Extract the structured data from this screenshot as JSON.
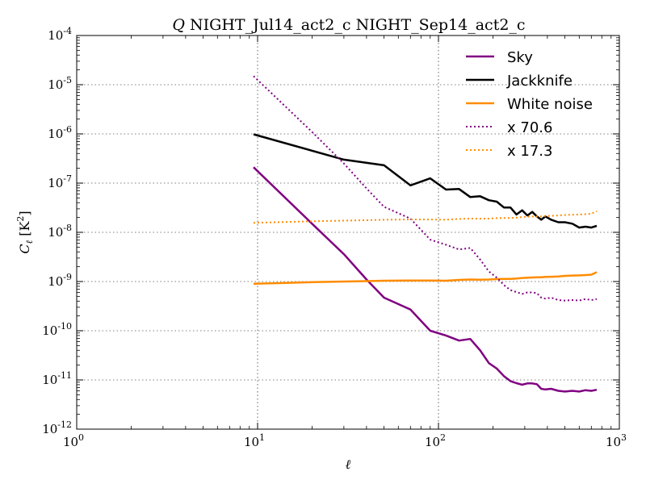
{
  "chart_data": {
    "type": "line",
    "title": {
      "var": "Q",
      "rest": " NIGHT_Jul14_act2_c NIGHT_Sep14_act2_c"
    },
    "xlabel": "ℓ",
    "ylabel": {
      "main": "C",
      "sub": "ℓ",
      "unit": "[K",
      "sup": "2",
      "close": "]"
    },
    "xscale": "log",
    "yscale": "log",
    "xlim": [
      1,
      1000
    ],
    "ylim": [
      1e-12,
      0.0001
    ],
    "grid": true,
    "legend_position": "top-right",
    "x_ticks": [
      {
        "value": 1,
        "base": "10",
        "exp": "0"
      },
      {
        "value": 10,
        "base": "10",
        "exp": "1"
      },
      {
        "value": 100,
        "base": "10",
        "exp": "2"
      },
      {
        "value": 1000,
        "base": "10",
        "exp": "3"
      }
    ],
    "y_ticks": [
      {
        "value": 1e-12,
        "base": "10",
        "exp": "-12"
      },
      {
        "value": 1e-11,
        "base": "10",
        "exp": "-11"
      },
      {
        "value": 1e-10,
        "base": "10",
        "exp": "-10"
      },
      {
        "value": 1e-09,
        "base": "10",
        "exp": "-9"
      },
      {
        "value": 1e-08,
        "base": "10",
        "exp": "-8"
      },
      {
        "value": 1e-07,
        "base": "10",
        "exp": "-7"
      },
      {
        "value": 1e-06,
        "base": "10",
        "exp": "-6"
      },
      {
        "value": 1e-05,
        "base": "10",
        "exp": "-5"
      },
      {
        "value": 0.0001,
        "base": "10",
        "exp": "-4"
      }
    ],
    "series": [
      {
        "name": "Sky",
        "color": "#800080",
        "style": "solid",
        "x": [
          9.5,
          20,
          30,
          40,
          50,
          70,
          90,
          110,
          130,
          150,
          170,
          190,
          210,
          230,
          250,
          270,
          290,
          310,
          330,
          350,
          370,
          390,
          420,
          460,
          500,
          550,
          600,
          650,
          700,
          750
        ],
        "y": [
          2.1e-07,
          1.5e-08,
          3.6e-09,
          1.1e-09,
          4.7e-10,
          2.7e-10,
          1e-10,
          8e-11,
          6.3e-11,
          6.8e-11,
          4e-11,
          2.2e-11,
          1.7e-11,
          1.2e-11,
          9.5e-12,
          8.6e-12,
          8e-12,
          8.5e-12,
          8.5e-12,
          8.2e-12,
          6.6e-12,
          6.4e-12,
          6.6e-12,
          6e-12,
          5.8e-12,
          6e-12,
          5.8e-12,
          6.2e-12,
          6e-12,
          6.3e-12
        ]
      },
      {
        "name": "Jackknife",
        "color": "#000000",
        "style": "solid",
        "x": [
          9.5,
          30,
          50,
          70,
          90,
          110,
          130,
          150,
          170,
          190,
          210,
          230,
          250,
          270,
          290,
          310,
          330,
          350,
          370,
          390,
          420,
          460,
          500,
          550,
          600,
          650,
          700,
          750
        ],
        "y": [
          9.8e-07,
          3e-07,
          2.3e-07,
          9e-08,
          1.25e-07,
          7.4e-08,
          7.6e-08,
          5.2e-08,
          5.4e-08,
          4.5e-08,
          4.2e-08,
          3.2e-08,
          3.2e-08,
          2.3e-08,
          2.8e-08,
          2.2e-08,
          2.6e-08,
          2.1e-08,
          1.8e-08,
          2.1e-08,
          1.8e-08,
          1.6e-08,
          1.6e-08,
          1.5e-08,
          1.25e-08,
          1.3e-08,
          1.25e-08,
          1.35e-08
        ]
      },
      {
        "name": "White noise",
        "color": "#ff8c00",
        "style": "solid",
        "x": [
          9.5,
          15,
          20,
          30,
          40,
          50,
          70,
          90,
          110,
          130,
          150,
          170,
          190,
          210,
          230,
          250,
          270,
          290,
          310,
          330,
          350,
          370,
          390,
          420,
          460,
          500,
          550,
          600,
          650,
          700,
          750
        ],
        "y": [
          9e-10,
          9.4e-10,
          9.7e-10,
          1e-09,
          1.02e-09,
          1.04e-09,
          1.05e-09,
          1.05e-09,
          1.04e-09,
          1.08e-09,
          1.1e-09,
          1.09e-09,
          1.1e-09,
          1.12e-09,
          1.13e-09,
          1.13e-09,
          1.15e-09,
          1.18e-09,
          1.2e-09,
          1.21e-09,
          1.22e-09,
          1.22e-09,
          1.24e-09,
          1.25e-09,
          1.27e-09,
          1.3e-09,
          1.32e-09,
          1.33e-09,
          1.35e-09,
          1.38e-09,
          1.55e-09
        ]
      },
      {
        "name": "x 70.6",
        "color": "#800080",
        "style": "dotted",
        "x": [
          9.5,
          20,
          30,
          40,
          50,
          70,
          90,
          110,
          130,
          150,
          170,
          190,
          210,
          230,
          250,
          270,
          290,
          310,
          330,
          350,
          370,
          390,
          420,
          460,
          500,
          550,
          600,
          650,
          700,
          750
        ],
        "y": [
          1.5e-05,
          1.1e-06,
          2.5e-07,
          7.8e-08,
          3.3e-08,
          1.9e-08,
          7.1e-09,
          5.6e-09,
          4.5e-09,
          4.8e-09,
          2.8e-09,
          1.6e-09,
          1.2e-09,
          8.5e-10,
          6.7e-10,
          6.1e-10,
          5.6e-10,
          6e-10,
          6e-10,
          5.8e-10,
          4.7e-10,
          4.5e-10,
          4.7e-10,
          4.2e-10,
          4.1e-10,
          4.2e-10,
          4.1e-10,
          4.4e-10,
          4.2e-10,
          4.4e-10
        ]
      },
      {
        "name": "x 17.3",
        "color": "#ff8c00",
        "style": "dotted",
        "x": [
          9.5,
          15,
          20,
          30,
          40,
          50,
          70,
          90,
          110,
          130,
          150,
          170,
          190,
          210,
          230,
          250,
          270,
          290,
          310,
          330,
          350,
          370,
          390,
          420,
          460,
          500,
          550,
          600,
          650,
          700,
          750
        ],
        "y": [
          1.56e-08,
          1.63e-08,
          1.68e-08,
          1.73e-08,
          1.76e-08,
          1.8e-08,
          1.82e-08,
          1.82e-08,
          1.8e-08,
          1.87e-08,
          1.9e-08,
          1.89e-08,
          1.9e-08,
          1.94e-08,
          1.96e-08,
          1.96e-08,
          1.99e-08,
          2.04e-08,
          2.08e-08,
          2.09e-08,
          2.11e-08,
          2.11e-08,
          2.15e-08,
          2.16e-08,
          2.2e-08,
          2.25e-08,
          2.28e-08,
          2.3e-08,
          2.34e-08,
          2.39e-08,
          2.68e-08
        ]
      }
    ]
  }
}
